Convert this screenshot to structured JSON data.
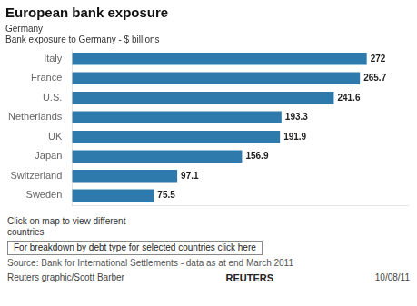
{
  "chart_data": {
    "type": "bar",
    "orientation": "horizontal",
    "title": "European bank exposure",
    "subtitle": [
      "Germany",
      "Bank exposure to Germany - $ billions"
    ],
    "categories": [
      "Italy",
      "France",
      "U.S.",
      "Netherlands",
      "UK",
      "Japan",
      "Switzerland",
      "Sweden"
    ],
    "values": [
      272,
      265.7,
      241.6,
      193.3,
      191.9,
      156.9,
      97.1,
      75.5
    ],
    "color": "#2e7aad",
    "xlim": [
      0,
      310
    ],
    "data_labels": true,
    "tick_labels": "y",
    "grid": false,
    "annotations": [
      "Click on map to view different\ncountries",
      "For breakdown by debt type for selected countries click here",
      "Source: Bank for International Settlements - data as at end March 2011",
      "Reuters graphic/Scott Barber",
      "10/08/11",
      "REUTERS"
    ]
  }
}
